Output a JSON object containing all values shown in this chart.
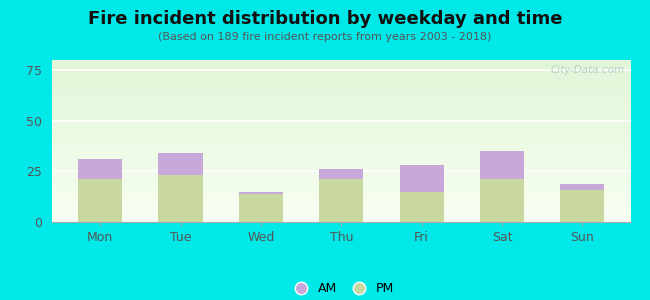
{
  "title": "Fire incident distribution by weekday and time",
  "subtitle": "(Based on 189 fire incident reports from years 2003 - 2018)",
  "days": [
    "Mon",
    "Tue",
    "Wed",
    "Thu",
    "Fri",
    "Sat",
    "Sun"
  ],
  "pm_values": [
    21,
    23,
    14,
    21,
    15,
    21,
    16
  ],
  "am_values": [
    10,
    11,
    1,
    5,
    13,
    14,
    3
  ],
  "am_color": "#c8a8d8",
  "pm_color": "#c8d8a0",
  "ylim": [
    0,
    80
  ],
  "yticks": [
    0,
    25,
    50,
    75
  ],
  "bar_width": 0.55,
  "outer_bg": "#00e8e8",
  "title_fontsize": 13,
  "subtitle_fontsize": 8,
  "axis_label_fontsize": 9,
  "legend_fontsize": 9,
  "watermark": "City-Data.com"
}
